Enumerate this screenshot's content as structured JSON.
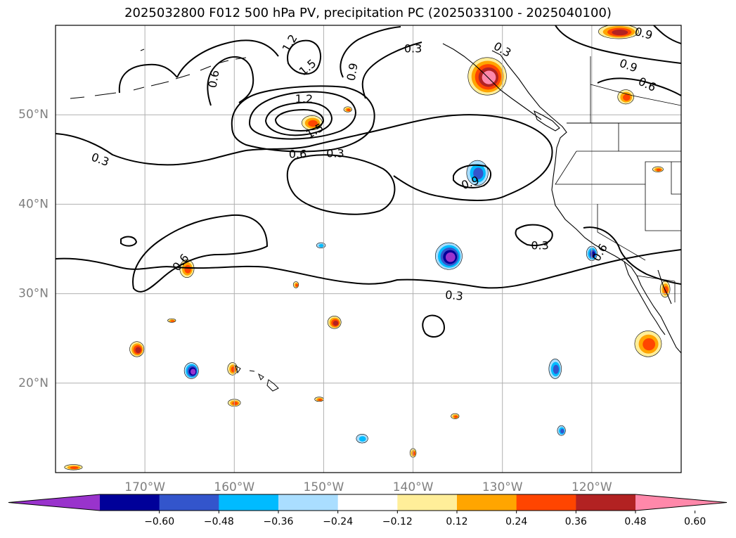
{
  "title": "2025032800 F012 500 hPa PV, precipitation PC (2025033100 - 2025040100)",
  "map": {
    "lat_labels": [
      {
        "lat": 50,
        "text": "50°N"
      },
      {
        "lat": 40,
        "text": "40°N"
      },
      {
        "lat": 30,
        "text": "30°N"
      },
      {
        "lat": 20,
        "text": "20°N"
      }
    ],
    "lon_labels": [
      {
        "lon": -170,
        "text": "170°W"
      },
      {
        "lon": -160,
        "text": "160°W"
      },
      {
        "lon": -150,
        "text": "150°W"
      },
      {
        "lon": -140,
        "text": "140°W"
      },
      {
        "lon": -130,
        "text": "130°W"
      },
      {
        "lon": -120,
        "text": "120°W"
      }
    ],
    "extent": {
      "lon_min": -180,
      "lon_max": -110,
      "lat_min": 10,
      "lat_max": 60
    },
    "grid": true,
    "contour_labels": [
      {
        "text": "0.3",
        "lon": -175.0,
        "lat": 45.0,
        "rot": 20
      },
      {
        "text": "0.6",
        "lon": -162.3,
        "lat": 54.0,
        "rot": -80
      },
      {
        "text": "1.2",
        "lon": -153.8,
        "lat": 58.0,
        "rot": -60
      },
      {
        "text": "1.5",
        "lon": -151.8,
        "lat": 55.3,
        "rot": -40
      },
      {
        "text": "1.2",
        "lon": -152.2,
        "lat": 51.8,
        "rot": 0
      },
      {
        "text": "1.5",
        "lon": -151.0,
        "lat": 48.2,
        "rot": -30
      },
      {
        "text": "0.9",
        "lon": -146.8,
        "lat": 54.8,
        "rot": -80
      },
      {
        "text": "0.6",
        "lon": -152.9,
        "lat": 45.6,
        "rot": 0
      },
      {
        "text": "0.3",
        "lon": -148.7,
        "lat": 45.7,
        "rot": 0
      },
      {
        "text": "0.3",
        "lon": -140.0,
        "lat": 57.4,
        "rot": 0
      },
      {
        "text": "0.3",
        "lon": -130.0,
        "lat": 57.3,
        "rot": 30
      },
      {
        "text": "0.9",
        "lon": -133.6,
        "lat": 42.4,
        "rot": -20
      },
      {
        "text": "0.3",
        "lon": -125.8,
        "lat": 35.4,
        "rot": 0
      },
      {
        "text": "0.9",
        "lon": -114.2,
        "lat": 59.1,
        "rot": 15
      },
      {
        "text": "0.9",
        "lon": -115.9,
        "lat": 55.5,
        "rot": 20
      },
      {
        "text": "0.6",
        "lon": -113.8,
        "lat": 53.4,
        "rot": 25
      },
      {
        "text": "0.6",
        "lon": -119.1,
        "lat": 34.6,
        "rot": -60
      },
      {
        "text": "0.6",
        "lon": -166.0,
        "lat": 33.5,
        "rot": -50
      },
      {
        "text": "0.3",
        "lon": -135.4,
        "lat": 29.8,
        "rot": 5
      }
    ],
    "precip_blobs": [
      {
        "lon": -131.7,
        "lat": 54.3,
        "rx": 4.3,
        "ry": 4.2,
        "sign": 1,
        "level": 5
      },
      {
        "lon": -151.3,
        "lat": 49.1,
        "rx": 2.3,
        "ry": 1.6,
        "sign": 1,
        "level": 3
      },
      {
        "lon": -147.3,
        "lat": 50.6,
        "rx": 0.9,
        "ry": 0.6,
        "sign": 1,
        "level": 3
      },
      {
        "lon": -132.8,
        "lat": 43.5,
        "rx": 2.4,
        "ry": 2.8,
        "sign": -1,
        "level": 3
      },
      {
        "lon": -136.0,
        "lat": 34.2,
        "rx": 3.0,
        "ry": 3.0,
        "sign": -1,
        "level": 5
      },
      {
        "lon": -150.3,
        "lat": 35.4,
        "rx": 1.0,
        "ry": 0.6,
        "sign": -1,
        "level": 2
      },
      {
        "lon": -116.2,
        "lat": 52.0,
        "rx": 1.8,
        "ry": 1.6,
        "sign": 1,
        "level": 3
      },
      {
        "lon": -120.0,
        "lat": 34.5,
        "rx": 1.2,
        "ry": 1.6,
        "sign": -1,
        "level": 4
      },
      {
        "lon": -165.3,
        "lat": 32.8,
        "rx": 1.6,
        "ry": 2.0,
        "sign": 1,
        "level": 3
      },
      {
        "lon": -148.8,
        "lat": 26.8,
        "rx": 1.5,
        "ry": 1.4,
        "sign": 1,
        "level": 4
      },
      {
        "lon": -170.9,
        "lat": 23.8,
        "rx": 1.6,
        "ry": 1.7,
        "sign": 1,
        "level": 4
      },
      {
        "lon": -164.8,
        "lat": 21.4,
        "rx": 1.6,
        "ry": 1.8,
        "sign": -1,
        "level": 5
      },
      {
        "lon": -160.2,
        "lat": 21.6,
        "rx": 1.1,
        "ry": 1.4,
        "sign": 1,
        "level": 3
      },
      {
        "lon": -160.0,
        "lat": 17.8,
        "rx": 1.4,
        "ry": 0.8,
        "sign": 1,
        "level": 3
      },
      {
        "lon": -150.5,
        "lat": 18.2,
        "rx": 1.0,
        "ry": 0.5,
        "sign": 1,
        "level": 3
      },
      {
        "lon": -145.7,
        "lat": 13.8,
        "rx": 1.3,
        "ry": 1.0,
        "sign": -1,
        "level": 2
      },
      {
        "lon": -135.3,
        "lat": 16.3,
        "rx": 0.9,
        "ry": 0.6,
        "sign": 1,
        "level": 3
      },
      {
        "lon": -140.0,
        "lat": 12.2,
        "rx": 0.7,
        "ry": 1.0,
        "sign": 1,
        "level": 3
      },
      {
        "lon": -124.1,
        "lat": 21.6,
        "rx": 1.4,
        "ry": 2.2,
        "sign": -1,
        "level": 3
      },
      {
        "lon": -123.4,
        "lat": 14.7,
        "rx": 0.9,
        "ry": 1.1,
        "sign": -1,
        "level": 3
      },
      {
        "lon": -113.7,
        "lat": 24.4,
        "rx": 3.0,
        "ry": 2.9,
        "sign": 1,
        "level": 3
      },
      {
        "lon": -111.8,
        "lat": 30.5,
        "rx": 1.1,
        "ry": 1.8,
        "sign": 1,
        "level": 3
      },
      {
        "lon": -112.6,
        "lat": 43.9,
        "rx": 1.2,
        "ry": 0.6,
        "sign": 1,
        "level": 3
      },
      {
        "lon": -117.0,
        "lat": 59.3,
        "rx": 4.5,
        "ry": 1.6,
        "sign": 1,
        "level": 4
      },
      {
        "lon": -178.0,
        "lat": 10.6,
        "rx": 2.0,
        "ry": 0.6,
        "sign": 1,
        "level": 3
      },
      {
        "lon": -153.1,
        "lat": 31.0,
        "rx": 0.6,
        "ry": 0.7,
        "sign": 1,
        "level": 3
      },
      {
        "lon": -167.0,
        "lat": 27.0,
        "rx": 0.9,
        "ry": 0.4,
        "sign": 1,
        "level": 3
      }
    ]
  },
  "colorbar": {
    "colors": [
      "#9933cc",
      "#000099",
      "#3355cc",
      "#00bbff",
      "#aadeff",
      "#ffffff",
      "#ffee99",
      "#ffa500",
      "#ff4500",
      "#b22222",
      "#ff88aa"
    ],
    "tick_labels": [
      "−0.60",
      "−0.48",
      "−0.36",
      "−0.24",
      "−0.12",
      "0.12",
      "0.24",
      "0.36",
      "0.48",
      "0.60"
    ]
  }
}
